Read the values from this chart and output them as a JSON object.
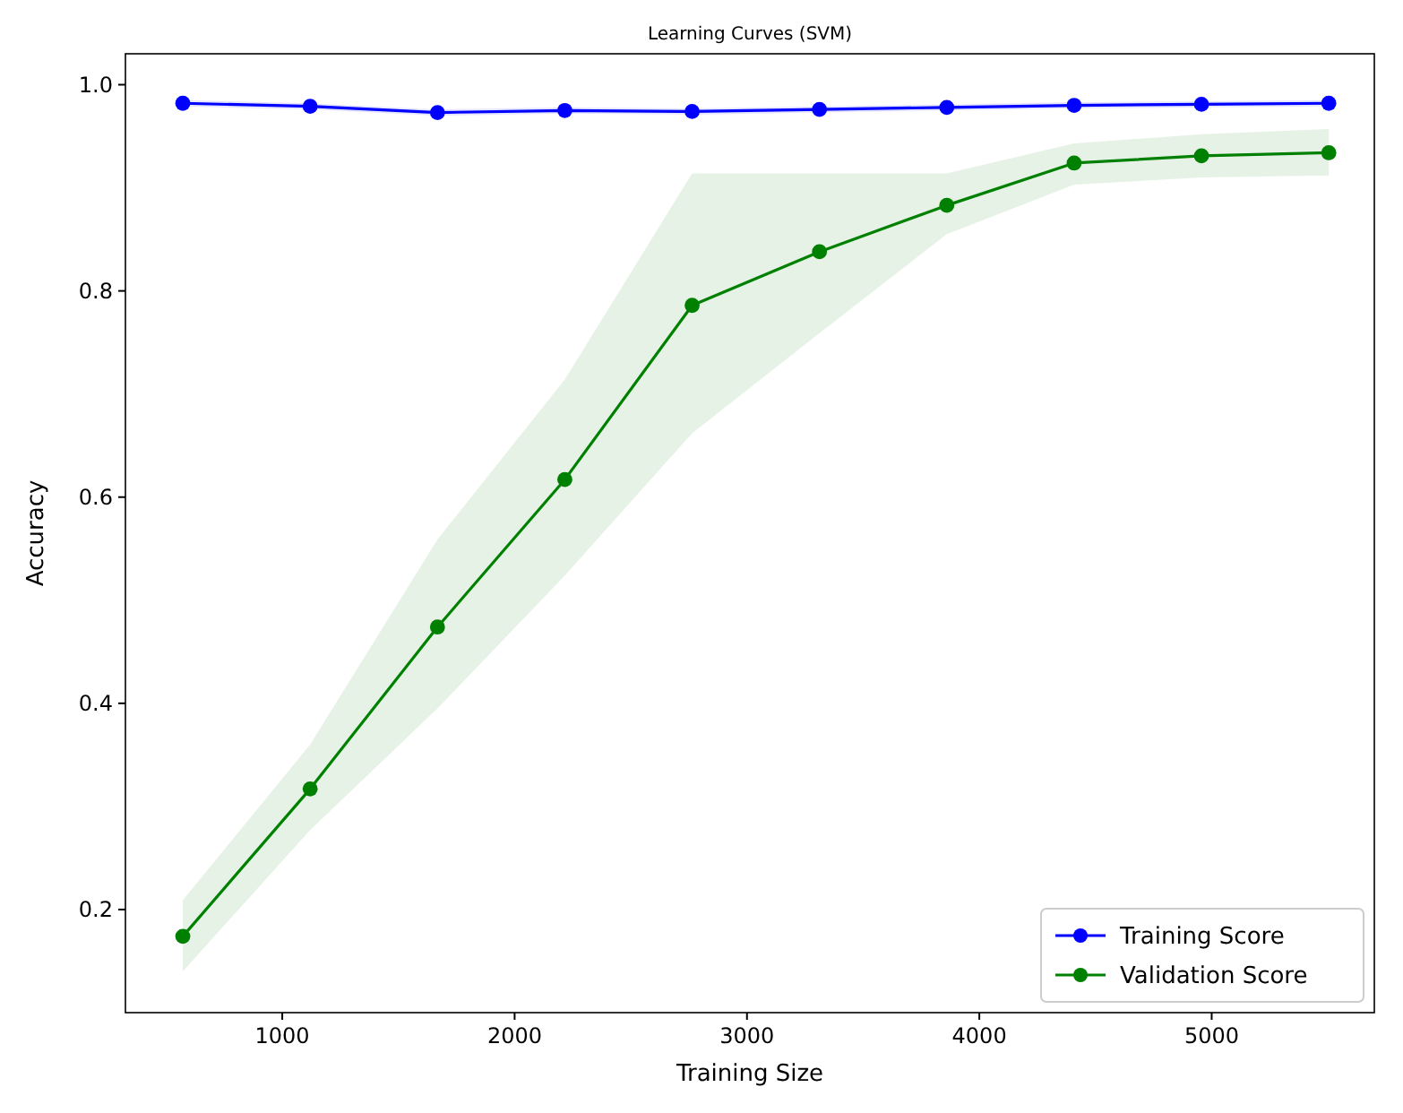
{
  "chart_data": {
    "type": "line",
    "title": "Learning Curves (SVM)",
    "xlabel": "Training Size",
    "ylabel": "Accuracy",
    "xlim": [
      325,
      5700
    ],
    "xticks": [
      1000,
      2000,
      3000,
      4000,
      5000
    ],
    "ylim": [
      0.1,
      1.03
    ],
    "yticks": [
      {
        "value": 0.2,
        "label": "0.2"
      },
      {
        "value": 0.4,
        "label": "0.4"
      },
      {
        "value": 0.6,
        "label": "0.6"
      },
      {
        "value": 0.8,
        "label": "0.8"
      },
      {
        "value": 1.0,
        "label": "1.0"
      }
    ],
    "x": [
      572,
      1120,
      1668,
      2216,
      2764,
      3312,
      3860,
      4408,
      4956,
      5504
    ],
    "marker": "circle",
    "legend": "bottom right",
    "grid": false,
    "series": [
      {
        "name": "Training Score",
        "color": "#0000ff",
        "values": [
          0.982,
          0.979,
          0.973,
          0.975,
          0.974,
          0.976,
          0.978,
          0.98,
          0.981,
          0.982
        ],
        "lower": [
          0.979,
          0.976,
          0.97,
          0.972,
          0.971,
          0.973,
          0.975,
          0.977,
          0.978,
          0.979
        ],
        "upper": [
          0.985,
          0.982,
          0.976,
          0.978,
          0.977,
          0.979,
          0.981,
          0.983,
          0.984,
          0.985
        ]
      },
      {
        "name": "Validation Score",
        "color": "#008000",
        "values": [
          0.174,
          0.317,
          0.474,
          0.617,
          0.786,
          0.838,
          0.883,
          0.924,
          0.931,
          0.934
        ],
        "lower": [
          0.14,
          0.277,
          0.395,
          0.524,
          0.662,
          0.759,
          0.855,
          0.903,
          0.91,
          0.912
        ],
        "upper": [
          0.209,
          0.36,
          0.559,
          0.714,
          0.914,
          0.914,
          0.914,
          0.943,
          0.952,
          0.957
        ]
      }
    ]
  }
}
